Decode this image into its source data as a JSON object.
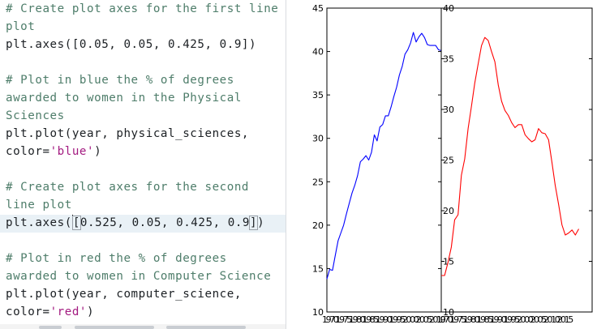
{
  "editor": {
    "lines": [
      {
        "kind": "comment",
        "text": "# Create plot axes for the first line"
      },
      {
        "kind": "comment",
        "text": "plot"
      },
      {
        "kind": "code",
        "text": "plt.axes([0.05, 0.05, 0.425, 0.9])"
      },
      {
        "kind": "blank",
        "text": ""
      },
      {
        "kind": "comment",
        "text": "# Plot in blue the % of degrees"
      },
      {
        "kind": "comment",
        "text": "awarded to women in the Physical"
      },
      {
        "kind": "comment",
        "text": "Sciences"
      },
      {
        "kind": "code",
        "text": "plt.plot(year, physical_sciences,"
      },
      {
        "kind": "code_str",
        "pre": "color=",
        "str": "'blue'",
        "post": ")"
      },
      {
        "kind": "blank",
        "text": ""
      },
      {
        "kind": "comment",
        "text": "# Create plot axes for the second"
      },
      {
        "kind": "comment",
        "text": "line plot"
      },
      {
        "kind": "code_caret",
        "pre": "plt.axes(",
        "mid": "[0.525, 0.05, 0.425, 0.9]",
        "post": ")"
      },
      {
        "kind": "blank",
        "text": ""
      },
      {
        "kind": "comment",
        "text": "# Plot in red the % of degrees"
      },
      {
        "kind": "comment",
        "text": "awarded to women in Computer Science"
      },
      {
        "kind": "code",
        "text": "plt.plot(year, computer_science,"
      },
      {
        "kind": "code_str",
        "pre": "color=",
        "str": "'red'",
        "post": ")"
      }
    ]
  },
  "chart_data": [
    {
      "type": "line",
      "color": "#0000ff",
      "xlim": [
        1970,
        2011
      ],
      "ylim": [
        10,
        45
      ],
      "yticks": [
        10,
        15,
        20,
        25,
        30,
        35,
        40,
        45
      ],
      "xtick_text": "1970 1975 1980 1985 1990 1995 2000 2005 2010",
      "x": [
        1970,
        1971,
        1972,
        1973,
        1974,
        1975,
        1976,
        1977,
        1978,
        1979,
        1980,
        1981,
        1982,
        1983,
        1984,
        1985,
        1986,
        1987,
        1988,
        1989,
        1990,
        1991,
        1992,
        1993,
        1994,
        1995,
        1996,
        1997,
        1998,
        1999,
        2000,
        2001,
        2002,
        2003,
        2004,
        2005,
        2006,
        2007,
        2008,
        2009,
        2010,
        2011
      ],
      "y": [
        13.8,
        14.9,
        14.8,
        16.5,
        18.2,
        19.1,
        20.0,
        21.3,
        22.5,
        23.7,
        24.6,
        25.7,
        27.3,
        27.6,
        28.0,
        27.5,
        28.4,
        30.4,
        29.7,
        31.3,
        31.6,
        32.6,
        32.6,
        33.6,
        34.8,
        35.9,
        37.3,
        38.3,
        39.7,
        40.2,
        41.0,
        42.2,
        41.1,
        41.7,
        42.1,
        41.6,
        40.8,
        40.7,
        40.7,
        40.7,
        40.2,
        40.1
      ]
    },
    {
      "type": "line",
      "color": "#ff0000",
      "xlim": [
        1970,
        2015
      ],
      "ylim": [
        10,
        40
      ],
      "yticks": [
        10,
        15,
        20,
        25,
        30,
        35,
        40
      ],
      "xtick_text": "1970 1975 1980 1985 1990 1995 2000 2005 2010 2015",
      "x": [
        1970,
        1971,
        1972,
        1973,
        1974,
        1975,
        1976,
        1977,
        1978,
        1979,
        1980,
        1981,
        1982,
        1983,
        1984,
        1985,
        1986,
        1987,
        1988,
        1989,
        1990,
        1991,
        1992,
        1993,
        1994,
        1995,
        1996,
        1997,
        1998,
        1999,
        2000,
        2001,
        2002,
        2003,
        2004,
        2005,
        2006,
        2007,
        2008,
        2009,
        2010,
        2011
      ],
      "y": [
        13.6,
        13.6,
        14.9,
        16.4,
        19.1,
        19.6,
        23.5,
        25.1,
        28.1,
        30.3,
        32.6,
        34.5,
        36.3,
        37.1,
        36.8,
        35.7,
        34.7,
        32.4,
        30.8,
        29.9,
        29.4,
        28.7,
        28.2,
        28.5,
        28.5,
        27.5,
        27.1,
        26.8,
        27.0,
        28.1,
        27.7,
        27.6,
        27.0,
        24.8,
        22.5,
        20.6,
        18.6,
        17.6,
        17.8,
        18.1,
        17.6,
        18.2
      ]
    }
  ]
}
